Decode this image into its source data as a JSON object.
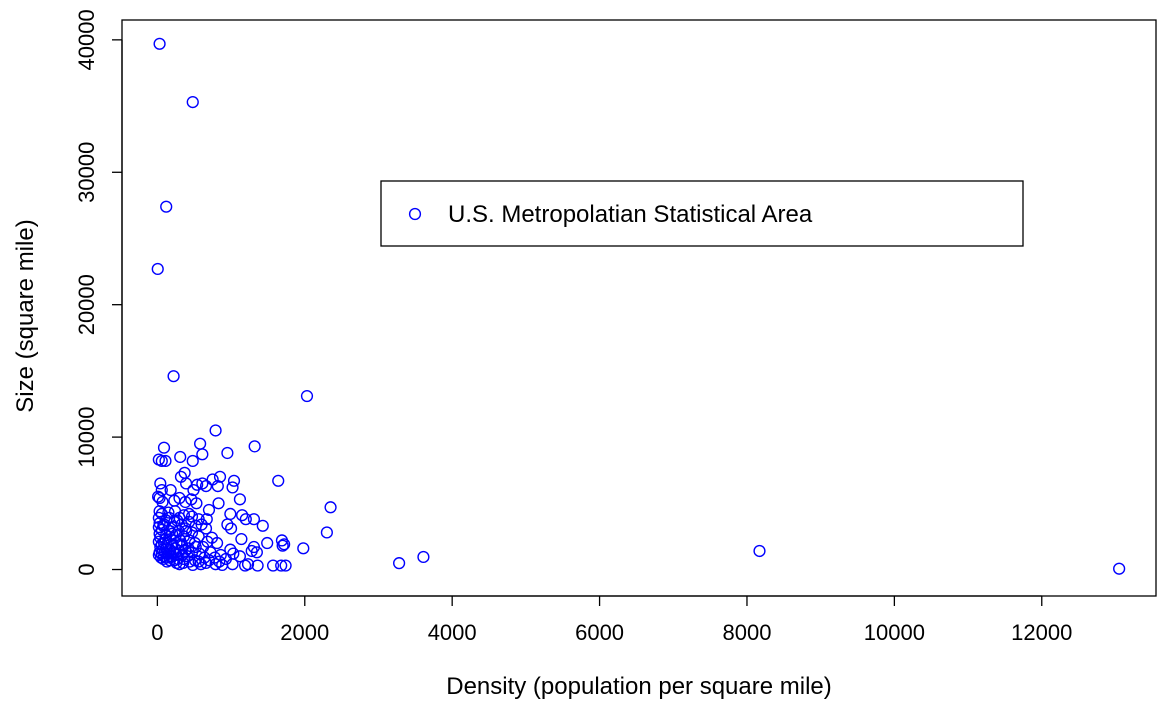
{
  "chart_data": {
    "type": "scatter",
    "title": "",
    "xlabel": "Density (population per square mile)",
    "ylabel": "Size (square mile)",
    "xlim": [
      -480,
      13550
    ],
    "ylim": [
      -2000,
      41500
    ],
    "x_ticks": [
      0,
      2000,
      4000,
      6000,
      8000,
      10000,
      12000
    ],
    "y_ticks": [
      0,
      10000,
      20000,
      30000,
      40000
    ],
    "x_tick_labels": [
      "0",
      "2000",
      "4000",
      "6000",
      "8000",
      "10000",
      "12000"
    ],
    "y_tick_labels": [
      "0",
      "10000",
      "20000",
      "30000",
      "40000"
    ],
    "grid": false,
    "legend_position": "top-center",
    "marker": "open-circle",
    "color": "#0000ff",
    "series": [
      {
        "name": "U.S. Metropolatian Statistical Area",
        "points": [
          [
            30,
            39700
          ],
          [
            480,
            35300
          ],
          [
            120,
            27400
          ],
          [
            5,
            22700
          ],
          [
            220,
            14600
          ],
          [
            2030,
            13100
          ],
          [
            790,
            10500
          ],
          [
            580,
            9500
          ],
          [
            1320,
            9300
          ],
          [
            90,
            9200
          ],
          [
            950,
            8800
          ],
          [
            610,
            8700
          ],
          [
            310,
            8500
          ],
          [
            20,
            8300
          ],
          [
            60,
            8200
          ],
          [
            110,
            8200
          ],
          [
            480,
            8200
          ],
          [
            370,
            7300
          ],
          [
            850,
            7000
          ],
          [
            320,
            7000
          ],
          [
            750,
            6800
          ],
          [
            1040,
            6700
          ],
          [
            1640,
            6700
          ],
          [
            40,
            6500
          ],
          [
            390,
            6500
          ],
          [
            540,
            6400
          ],
          [
            610,
            6500
          ],
          [
            820,
            6300
          ],
          [
            660,
            6300
          ],
          [
            1020,
            6200
          ],
          [
            60,
            6000
          ],
          [
            180,
            6000
          ],
          [
            490,
            6000
          ],
          [
            10,
            5500
          ],
          [
            30,
            5400
          ],
          [
            1120,
            5300
          ],
          [
            460,
            5300
          ],
          [
            300,
            5400
          ],
          [
            70,
            5100
          ],
          [
            380,
            5100
          ],
          [
            530,
            5000
          ],
          [
            830,
            5000
          ],
          [
            2350,
            4700
          ],
          [
            30,
            4400
          ],
          [
            700,
            4500
          ],
          [
            240,
            4400
          ],
          [
            990,
            4200
          ],
          [
            1150,
            4100
          ],
          [
            60,
            4200
          ],
          [
            360,
            4100
          ],
          [
            470,
            4000
          ],
          [
            20,
            3900
          ],
          [
            160,
            3900
          ],
          [
            300,
            3900
          ],
          [
            670,
            3800
          ],
          [
            1200,
            3800
          ],
          [
            560,
            3800
          ],
          [
            1310,
            3800
          ],
          [
            120,
            3700
          ],
          [
            230,
            3600
          ],
          [
            430,
            3600
          ],
          [
            30,
            3500
          ],
          [
            90,
            3400
          ],
          [
            330,
            3400
          ],
          [
            520,
            3300
          ],
          [
            950,
            3400
          ],
          [
            1430,
            3300
          ],
          [
            20,
            3200
          ],
          [
            200,
            3200
          ],
          [
            380,
            3100
          ],
          [
            660,
            3100
          ],
          [
            1000,
            3100
          ],
          [
            60,
            3000
          ],
          [
            170,
            2900
          ],
          [
            290,
            2900
          ],
          [
            470,
            2800
          ],
          [
            2300,
            2800
          ],
          [
            30,
            2700
          ],
          [
            120,
            2600
          ],
          [
            250,
            2600
          ],
          [
            360,
            2500
          ],
          [
            740,
            2400
          ],
          [
            560,
            2500
          ],
          [
            1140,
            2300
          ],
          [
            40,
            2400
          ],
          [
            180,
            2300
          ],
          [
            310,
            2200
          ],
          [
            430,
            2200
          ],
          [
            680,
            2100
          ],
          [
            1690,
            2200
          ],
          [
            20,
            2100
          ],
          [
            90,
            2000
          ],
          [
            140,
            2000
          ],
          [
            260,
            2000
          ],
          [
            810,
            2000
          ],
          [
            1490,
            2000
          ],
          [
            1720,
            1900
          ],
          [
            60,
            1900
          ],
          [
            200,
            1800
          ],
          [
            340,
            1800
          ],
          [
            520,
            1700
          ],
          [
            620,
            1700
          ],
          [
            1310,
            1700
          ],
          [
            1700,
            1800
          ],
          [
            1980,
            1600
          ],
          [
            40,
            1700
          ],
          [
            120,
            1600
          ],
          [
            240,
            1600
          ],
          [
            420,
            1600
          ],
          [
            990,
            1500
          ],
          [
            8170,
            1400
          ],
          [
            1280,
            1400
          ],
          [
            70,
            1500
          ],
          [
            170,
            1500
          ],
          [
            300,
            1400
          ],
          [
            380,
            1400
          ],
          [
            720,
            1300
          ],
          [
            1350,
            1300
          ],
          [
            30,
            1300
          ],
          [
            100,
            1300
          ],
          [
            220,
            1300
          ],
          [
            470,
            1300
          ],
          [
            570,
            1200
          ],
          [
            1030,
            1200
          ],
          [
            3610,
            950
          ],
          [
            60,
            1200
          ],
          [
            150,
            1200
          ],
          [
            260,
            1100
          ],
          [
            340,
            1100
          ],
          [
            860,
            1100
          ],
          [
            1120,
            1000
          ],
          [
            20,
            1100
          ],
          [
            90,
            1000
          ],
          [
            190,
            1000
          ],
          [
            410,
            1000
          ],
          [
            640,
            900
          ],
          [
            780,
            900
          ],
          [
            930,
            800
          ],
          [
            50,
            900
          ],
          [
            130,
            900
          ],
          [
            280,
            800
          ],
          [
            360,
            800
          ],
          [
            510,
            700
          ],
          [
            700,
            700
          ],
          [
            840,
            600
          ],
          [
            3280,
            480
          ],
          [
            80,
            800
          ],
          [
            170,
            700
          ],
          [
            230,
            700
          ],
          [
            440,
            600
          ],
          [
            560,
            600
          ],
          [
            660,
            500
          ],
          [
            1020,
            400
          ],
          [
            1230,
            400
          ],
          [
            1570,
            300
          ],
          [
            1680,
            300
          ],
          [
            1740,
            300
          ],
          [
            130,
            600
          ],
          [
            260,
            500
          ],
          [
            350,
            500
          ],
          [
            590,
            400
          ],
          [
            790,
            400
          ],
          [
            1190,
            300
          ],
          [
            1360,
            300
          ],
          [
            300,
            400
          ],
          [
            480,
            350
          ],
          [
            880,
            350
          ],
          [
            13050,
            60
          ],
          [
            200,
            2700
          ],
          [
            270,
            3700
          ],
          [
            390,
            2900
          ],
          [
            150,
            4300
          ],
          [
            80,
            3300
          ],
          [
            510,
            2000
          ],
          [
            430,
            4200
          ],
          [
            110,
            2300
          ],
          [
            330,
            1900
          ],
          [
            230,
            5200
          ],
          [
            600,
            3400
          ],
          [
            180,
            1200
          ]
        ]
      }
    ]
  }
}
